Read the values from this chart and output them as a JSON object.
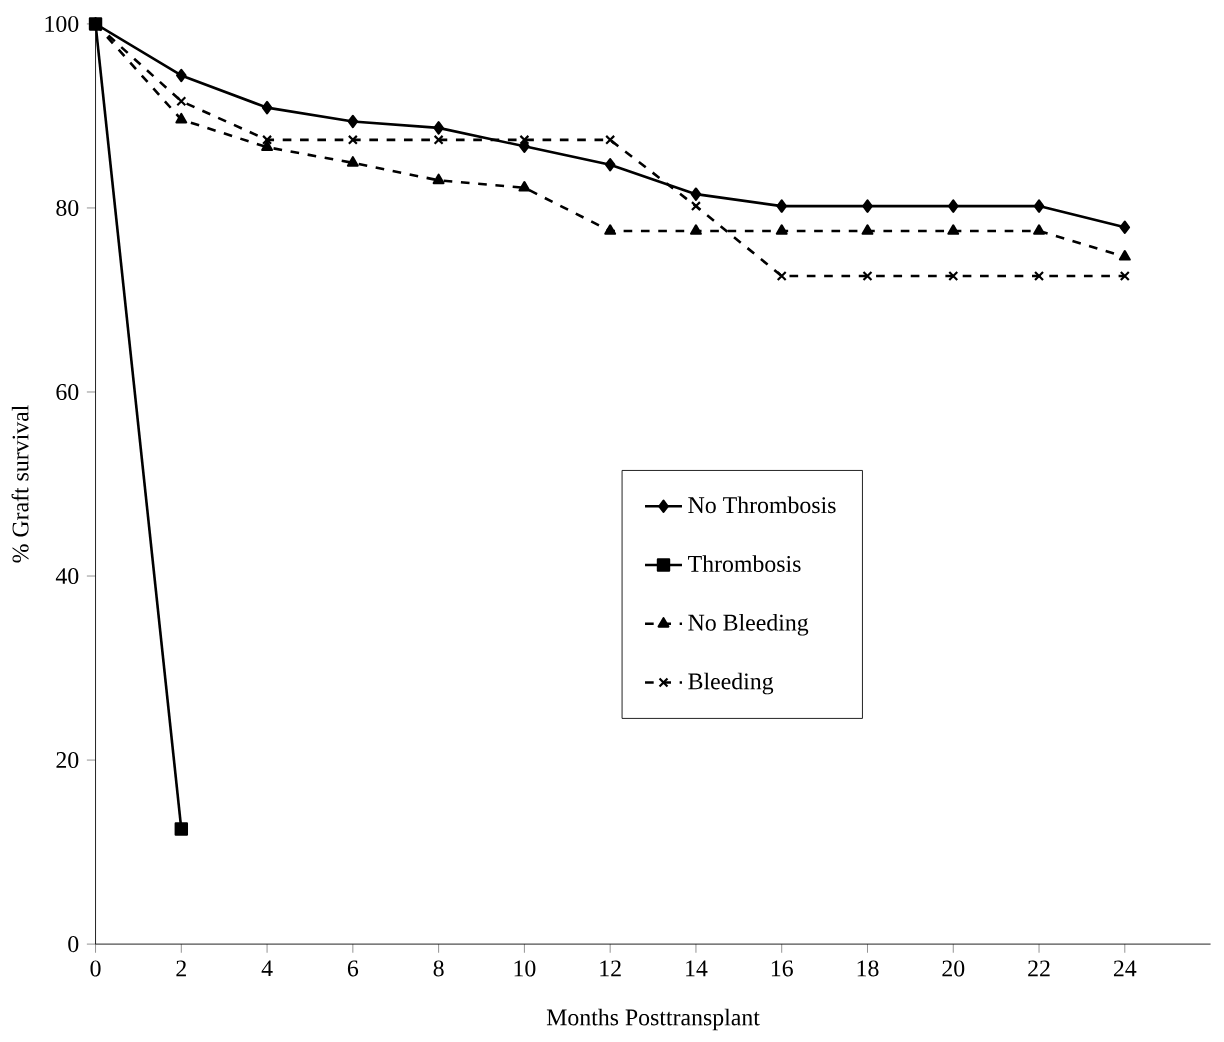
{
  "chart_data": {
    "type": "line",
    "xlabel": "Months Posttransplant",
    "ylabel": "% Graft survival",
    "xlim": [
      0,
      26
    ],
    "ylim": [
      0,
      100
    ],
    "xticks": [
      0,
      2,
      4,
      6,
      8,
      10,
      12,
      14,
      16,
      18,
      20,
      22,
      24
    ],
    "yticks": [
      0,
      20,
      40,
      60,
      80,
      100
    ],
    "legend": "center",
    "grid": false,
    "series": [
      {
        "name": "No Thrombosis",
        "color": "#000000",
        "marker": "diamond",
        "line_style": "solid",
        "x": [
          0,
          2,
          4,
          6,
          8,
          10,
          12,
          14,
          16,
          18,
          20,
          22,
          24
        ],
        "values": [
          100,
          94.4,
          90.9,
          89.4,
          88.7,
          86.7,
          84.7,
          81.5,
          80.2,
          80.2,
          80.2,
          80.2,
          77.9
        ]
      },
      {
        "name": "Thrombosis",
        "color": "#000000",
        "marker": "square",
        "line_style": "solid",
        "x": [
          0,
          2
        ],
        "values": [
          100,
          12.5
        ]
      },
      {
        "name": "No Bleeding",
        "color": "#000000",
        "marker": "triangle",
        "line_style": "dashed",
        "x": [
          0,
          2,
          4,
          6,
          8,
          10,
          12,
          14,
          16,
          18,
          20,
          22,
          24
        ],
        "values": [
          100,
          89.6,
          86.6,
          84.9,
          83.0,
          82.2,
          77.5,
          77.5,
          77.5,
          77.5,
          77.5,
          77.5,
          74.7
        ]
      },
      {
        "name": "Bleeding",
        "color": "#000000",
        "marker": "cross",
        "line_style": "dashed",
        "x": [
          0,
          2,
          4,
          6,
          8,
          10,
          12,
          14,
          16,
          18,
          20,
          22,
          24
        ],
        "values": [
          100,
          91.6,
          87.4,
          87.4,
          87.4,
          87.4,
          87.4,
          80.2,
          72.6,
          72.6,
          72.6,
          72.6,
          72.6
        ]
      }
    ]
  }
}
